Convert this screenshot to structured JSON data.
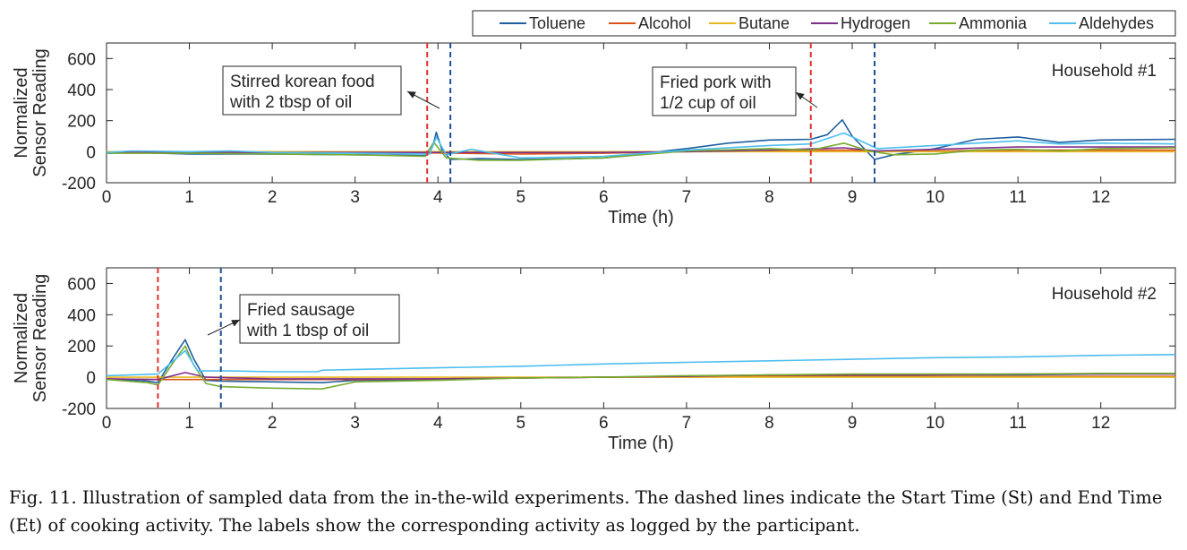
{
  "legend": [
    {
      "name": "Toluene",
      "color": "#1f5fa0"
    },
    {
      "name": "Alcohol",
      "color": "#d9541a"
    },
    {
      "name": "Butane",
      "color": "#e8b81f"
    },
    {
      "name": "Hydrogen",
      "color": "#7e2f8e"
    },
    {
      "name": "Ammonia",
      "color": "#77ac30"
    },
    {
      "name": "Aldehydes",
      "color": "#4dbeee"
    }
  ],
  "caption": {
    "label": "Fig. 11.",
    "text": "Illustration of sampled data from the in-the-wild experiments. The dashed lines indicate the Start Time (St) and End Time (Et) of cooking activity. The labels show the corresponding activity as logged by the participant."
  },
  "chart_data": [
    {
      "type": "line",
      "title": "Household #1",
      "xlabel": "Time (h)",
      "ylabel": [
        "Normalized",
        "Sensor Reading"
      ],
      "xlim": [
        0,
        12.9
      ],
      "ylim": [
        -200,
        700
      ],
      "xticks": [
        0,
        1,
        2,
        3,
        4,
        5,
        6,
        7,
        8,
        9,
        10,
        11,
        12
      ],
      "yticks": [
        -200,
        0,
        200,
        400,
        600
      ],
      "grid": false,
      "events": [
        {
          "start": 3.87,
          "end": 4.15,
          "start_color": "#e03030",
          "end_color": "#1f4e9a",
          "label": [
            "Stirred korean food",
            "with 2 tbsp of oil"
          ]
        },
        {
          "start": 8.5,
          "end": 9.27,
          "start_color": "#e03030",
          "end_color": "#1f4e9a",
          "label": [
            "Fried pork with",
            "1/2 cup of oil"
          ]
        }
      ],
      "series": [
        {
          "name": "Toluene",
          "color": "#1f5fa0",
          "x": [
            0,
            0.3,
            1,
            2,
            3,
            3.85,
            3.95,
            3.98,
            4.05,
            4.15,
            4.5,
            5,
            6,
            7,
            7.5,
            8,
            8.5,
            8.7,
            8.88,
            9,
            9.27,
            9.5,
            10,
            10.5,
            11,
            11.5,
            12,
            12.9
          ],
          "y": [
            -10,
            -5,
            -15,
            -15,
            -20,
            -25,
            60,
            125,
            10,
            -50,
            -45,
            -50,
            -40,
            20,
            55,
            75,
            80,
            110,
            205,
            100,
            -50,
            -20,
            20,
            80,
            95,
            60,
            75,
            80
          ]
        },
        {
          "name": "Alcohol",
          "color": "#d9541a",
          "x": [
            0,
            1,
            2,
            3,
            3.9,
            4.2,
            5,
            6,
            7,
            8,
            8.5,
            9,
            9.3,
            10,
            11,
            12,
            12.9
          ],
          "y": [
            -5,
            -5,
            -5,
            -8,
            -8,
            -10,
            -15,
            -10,
            0,
            5,
            10,
            10,
            5,
            5,
            10,
            10,
            10
          ]
        },
        {
          "name": "Butane",
          "color": "#e8b81f",
          "x": [
            0,
            1,
            2,
            3,
            4,
            5,
            6,
            7,
            8,
            9,
            10,
            11,
            12,
            12.9
          ],
          "y": [
            0,
            0,
            0,
            0,
            0,
            0,
            0,
            0,
            0,
            0,
            0,
            0,
            0,
            0
          ]
        },
        {
          "name": "Hydrogen",
          "color": "#7e2f8e",
          "x": [
            0,
            1,
            2,
            3,
            4,
            5,
            6,
            7,
            8,
            8.9,
            9.3,
            10,
            11,
            12,
            12.9
          ],
          "y": [
            -5,
            -5,
            -5,
            -5,
            -5,
            -5,
            -5,
            0,
            10,
            25,
            5,
            15,
            30,
            30,
            30
          ]
        },
        {
          "name": "Ammonia",
          "color": "#77ac30",
          "x": [
            0,
            1,
            2,
            3,
            3.85,
            3.95,
            4.1,
            4.5,
            5,
            6,
            7,
            8,
            8.5,
            8.9,
            9.2,
            9.5,
            10,
            10.5,
            11,
            11.5,
            12,
            12.9
          ],
          "y": [
            -10,
            -10,
            -15,
            -20,
            -30,
            60,
            -40,
            -55,
            -55,
            -40,
            5,
            20,
            10,
            55,
            5,
            -20,
            -15,
            10,
            15,
            5,
            20,
            25
          ]
        },
        {
          "name": "Aldehydes",
          "color": "#4dbeee",
          "x": [
            0,
            0.3,
            1,
            1.5,
            2,
            3,
            3.9,
            3.98,
            4.1,
            4.4,
            5,
            6,
            7,
            8,
            8.5,
            8.9,
            9.3,
            10,
            11,
            11.5,
            12,
            12.9
          ],
          "y": [
            -5,
            5,
            0,
            5,
            -5,
            -10,
            -15,
            95,
            -20,
            15,
            -40,
            -30,
            10,
            40,
            50,
            120,
            20,
            40,
            70,
            50,
            55,
            50
          ]
        }
      ]
    },
    {
      "type": "line",
      "title": "Household #2",
      "xlabel": "Time (h)",
      "ylabel": [
        "Normalized",
        "Sensor Reading"
      ],
      "xlim": [
        0,
        12.9
      ],
      "ylim": [
        -200,
        700
      ],
      "xticks": [
        0,
        1,
        2,
        3,
        4,
        5,
        6,
        7,
        8,
        9,
        10,
        11,
        12
      ],
      "yticks": [
        -200,
        0,
        200,
        400,
        600
      ],
      "grid": false,
      "events": [
        {
          "start": 0.62,
          "end": 1.38,
          "start_color": "#e03030",
          "end_color": "#1f4e9a",
          "label": [
            "Fried sausage",
            "with 1 tbsp of oil"
          ]
        }
      ],
      "series": [
        {
          "name": "Toluene",
          "color": "#1f5fa0",
          "x": [
            0,
            0.5,
            0.62,
            0.8,
            0.95,
            1.05,
            1.2,
            1.38,
            2,
            2.6,
            3,
            4,
            5,
            6,
            7,
            8,
            9,
            10,
            11,
            12,
            12.9
          ],
          "y": [
            -10,
            -25,
            -35,
            120,
            240,
            120,
            -20,
            -25,
            -30,
            -35,
            -20,
            -15,
            -5,
            0,
            5,
            10,
            10,
            15,
            15,
            20,
            25
          ]
        },
        {
          "name": "Alcohol",
          "color": "#d9541a",
          "x": [
            0,
            0.62,
            1,
            1.4,
            2,
            3,
            4,
            5,
            6,
            7,
            8,
            9,
            10,
            11,
            12,
            12.9
          ],
          "y": [
            -10,
            -15,
            -15,
            -15,
            -15,
            -15,
            -10,
            -5,
            0,
            0,
            5,
            5,
            5,
            5,
            5,
            5
          ]
        },
        {
          "name": "Butane",
          "color": "#e8b81f",
          "x": [
            0,
            1,
            2,
            3,
            4,
            5,
            6,
            7,
            8,
            9,
            10,
            11,
            12,
            12.9
          ],
          "y": [
            0,
            0,
            0,
            0,
            0,
            0,
            0,
            0,
            0,
            0,
            0,
            0,
            0,
            0
          ]
        },
        {
          "name": "Hydrogen",
          "color": "#7e2f8e",
          "x": [
            0,
            0.62,
            0.95,
            1.2,
            2,
            3,
            4,
            5,
            6,
            7,
            8,
            9,
            10,
            11,
            12,
            12.9
          ],
          "y": [
            -10,
            -15,
            30,
            0,
            -10,
            -10,
            -10,
            -5,
            0,
            5,
            15,
            15,
            15,
            20,
            20,
            20
          ]
        },
        {
          "name": "Ammonia",
          "color": "#77ac30",
          "x": [
            0,
            0.5,
            0.62,
            0.8,
            0.95,
            1.05,
            1.2,
            1.38,
            2,
            2.6,
            3,
            4,
            5,
            6,
            7,
            8,
            9,
            10,
            11,
            12,
            12.9
          ],
          "y": [
            -15,
            -35,
            -50,
            90,
            200,
            80,
            -40,
            -60,
            -70,
            -75,
            -30,
            -20,
            -5,
            0,
            10,
            15,
            20,
            20,
            20,
            25,
            25
          ]
        },
        {
          "name": "Aldehydes",
          "color": "#4dbeee",
          "x": [
            0,
            0.62,
            0.95,
            1.1,
            1.5,
            2,
            2.55,
            2.6,
            3,
            4,
            5,
            6,
            7,
            8,
            9,
            10,
            11,
            12,
            12.9
          ],
          "y": [
            10,
            20,
            170,
            40,
            40,
            35,
            35,
            45,
            50,
            60,
            70,
            85,
            95,
            105,
            115,
            125,
            130,
            140,
            145
          ]
        }
      ]
    }
  ]
}
